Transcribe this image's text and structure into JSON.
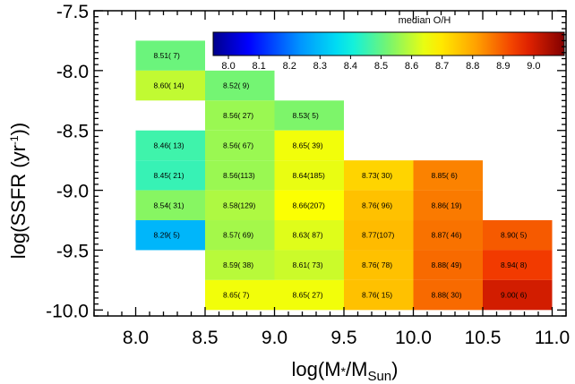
{
  "chart_data": {
    "type": "heatmap",
    "xlabel_main": "log(M",
    "xlabel_star": "*",
    "xlabel_slash": "/M",
    "xlabel_sub": "Sun",
    "xlabel_close": ")",
    "ylabel_main": "log(SSFR (yr",
    "ylabel_sup": "-1",
    "ylabel_close": "))",
    "xlim": [
      7.7,
      11.1
    ],
    "ylim": [
      -10.05,
      -7.5
    ],
    "xticks": [
      8.0,
      8.5,
      9.0,
      9.5,
      10.0,
      10.5,
      11.0
    ],
    "xtick_labels": [
      "8.0",
      "8.5",
      "9.0",
      "9.5",
      "10.0",
      "10.5",
      "11.0"
    ],
    "yticks": [
      -7.5,
      -8.0,
      -8.5,
      -9.0,
      -9.5,
      -10.0
    ],
    "ytick_labels": [
      "-7.5",
      "-8.0",
      "-8.5",
      "-9.0",
      "-9.5",
      "-10.0"
    ],
    "colorbar": {
      "title": "median O/H",
      "range": [
        7.95,
        9.1
      ],
      "ticks": [
        8.0,
        8.1,
        8.2,
        8.3,
        8.4,
        8.5,
        8.6,
        8.7,
        8.8,
        8.9,
        9.0
      ],
      "tick_labels": [
        "8.0",
        "8.1",
        "8.2",
        "8.3",
        "8.4",
        "8.5",
        "8.6",
        "8.7",
        "8.8",
        "8.9",
        "9.0"
      ]
    },
    "bin_width_x": 0.5,
    "bin_height_y": 0.25,
    "cells": [
      {
        "x": 8.0,
        "y": -8.0,
        "value": 8.51,
        "label": "8.51( 7)"
      },
      {
        "x": 8.0,
        "y": -8.25,
        "value": 8.6,
        "label": "8.60( 14)"
      },
      {
        "x": 8.0,
        "y": -8.75,
        "value": 8.46,
        "label": "8.46( 13)"
      },
      {
        "x": 8.0,
        "y": -9.0,
        "value": 8.45,
        "label": "8.45( 21)"
      },
      {
        "x": 8.0,
        "y": -9.25,
        "value": 8.54,
        "label": "8.54( 31)"
      },
      {
        "x": 8.0,
        "y": -9.5,
        "value": 8.29,
        "label": "8.29( 5)"
      },
      {
        "x": 8.5,
        "y": -8.25,
        "value": 8.52,
        "label": "8.52( 9)"
      },
      {
        "x": 8.5,
        "y": -8.5,
        "value": 8.56,
        "label": "8.56( 27)"
      },
      {
        "x": 8.5,
        "y": -8.75,
        "value": 8.56,
        "label": "8.56( 67)"
      },
      {
        "x": 8.5,
        "y": -9.0,
        "value": 8.56,
        "label": "8.56(113)"
      },
      {
        "x": 8.5,
        "y": -9.25,
        "value": 8.58,
        "label": "8.58(129)"
      },
      {
        "x": 8.5,
        "y": -9.5,
        "value": 8.57,
        "label": "8.57( 69)"
      },
      {
        "x": 8.5,
        "y": -9.75,
        "value": 8.59,
        "label": "8.59( 38)"
      },
      {
        "x": 8.5,
        "y": -10.0,
        "value": 8.65,
        "label": "8.65( 7)"
      },
      {
        "x": 9.0,
        "y": -8.5,
        "value": 8.53,
        "label": "8.53( 5)"
      },
      {
        "x": 9.0,
        "y": -8.75,
        "value": 8.65,
        "label": "8.65( 39)"
      },
      {
        "x": 9.0,
        "y": -9.0,
        "value": 8.64,
        "label": "8.64(185)"
      },
      {
        "x": 9.0,
        "y": -9.25,
        "value": 8.66,
        "label": "8.66(207)"
      },
      {
        "x": 9.0,
        "y": -9.5,
        "value": 8.63,
        "label": "8.63( 87)"
      },
      {
        "x": 9.0,
        "y": -9.75,
        "value": 8.61,
        "label": "8.61( 73)"
      },
      {
        "x": 9.0,
        "y": -10.0,
        "value": 8.65,
        "label": "8.65( 27)"
      },
      {
        "x": 9.5,
        "y": -9.0,
        "value": 8.73,
        "label": "8.73( 30)"
      },
      {
        "x": 9.5,
        "y": -9.25,
        "value": 8.76,
        "label": "8.76( 96)"
      },
      {
        "x": 9.5,
        "y": -9.5,
        "value": 8.77,
        "label": "8.77(107)"
      },
      {
        "x": 9.5,
        "y": -9.75,
        "value": 8.76,
        "label": "8.76( 78)"
      },
      {
        "x": 9.5,
        "y": -10.0,
        "value": 8.76,
        "label": "8.76( 15)"
      },
      {
        "x": 10.0,
        "y": -9.0,
        "value": 8.85,
        "label": "8.85( 6)"
      },
      {
        "x": 10.0,
        "y": -9.25,
        "value": 8.86,
        "label": "8.86( 19)"
      },
      {
        "x": 10.0,
        "y": -9.5,
        "value": 8.87,
        "label": "8.87( 46)"
      },
      {
        "x": 10.0,
        "y": -9.75,
        "value": 8.88,
        "label": "8.88( 49)"
      },
      {
        "x": 10.0,
        "y": -10.0,
        "value": 8.88,
        "label": "8.88( 30)"
      },
      {
        "x": 10.5,
        "y": -9.5,
        "value": 8.9,
        "label": "8.90( 5)"
      },
      {
        "x": 10.5,
        "y": -9.75,
        "value": 8.94,
        "label": "8.94( 8)"
      },
      {
        "x": 10.5,
        "y": -10.0,
        "value": 9.0,
        "label": "9.00( 6)"
      }
    ]
  }
}
